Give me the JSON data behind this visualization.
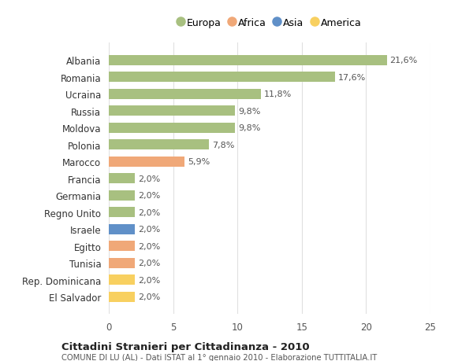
{
  "countries": [
    "Albania",
    "Romania",
    "Ucraina",
    "Russia",
    "Moldova",
    "Polonia",
    "Marocco",
    "Francia",
    "Germania",
    "Regno Unito",
    "Israele",
    "Egitto",
    "Tunisia",
    "Rep. Dominicana",
    "El Salvador"
  ],
  "values": [
    21.6,
    17.6,
    11.8,
    9.8,
    9.8,
    7.8,
    5.9,
    2.0,
    2.0,
    2.0,
    2.0,
    2.0,
    2.0,
    2.0,
    2.0
  ],
  "labels": [
    "21,6%",
    "17,6%",
    "11,8%",
    "9,8%",
    "9,8%",
    "7,8%",
    "5,9%",
    "2,0%",
    "2,0%",
    "2,0%",
    "2,0%",
    "2,0%",
    "2,0%",
    "2,0%",
    "2,0%"
  ],
  "continents": [
    "Europa",
    "Europa",
    "Europa",
    "Europa",
    "Europa",
    "Europa",
    "Africa",
    "Europa",
    "Europa",
    "Europa",
    "Asia",
    "Africa",
    "Africa",
    "America",
    "America"
  ],
  "colors": {
    "Europa": "#a8c080",
    "Africa": "#f0a878",
    "Asia": "#6090c8",
    "America": "#f8d060"
  },
  "legend_order": [
    "Europa",
    "Africa",
    "Asia",
    "America"
  ],
  "title": "Cittadini Stranieri per Cittadinanza - 2010",
  "subtitle": "COMUNE DI LU (AL) - Dati ISTAT al 1° gennaio 2010 - Elaborazione TUTTITALIA.IT",
  "xlim": [
    0,
    25
  ],
  "xticks": [
    0,
    5,
    10,
    15,
    20,
    25
  ],
  "background_color": "#ffffff",
  "grid_color": "#e0e0e0",
  "bar_height": 0.6
}
